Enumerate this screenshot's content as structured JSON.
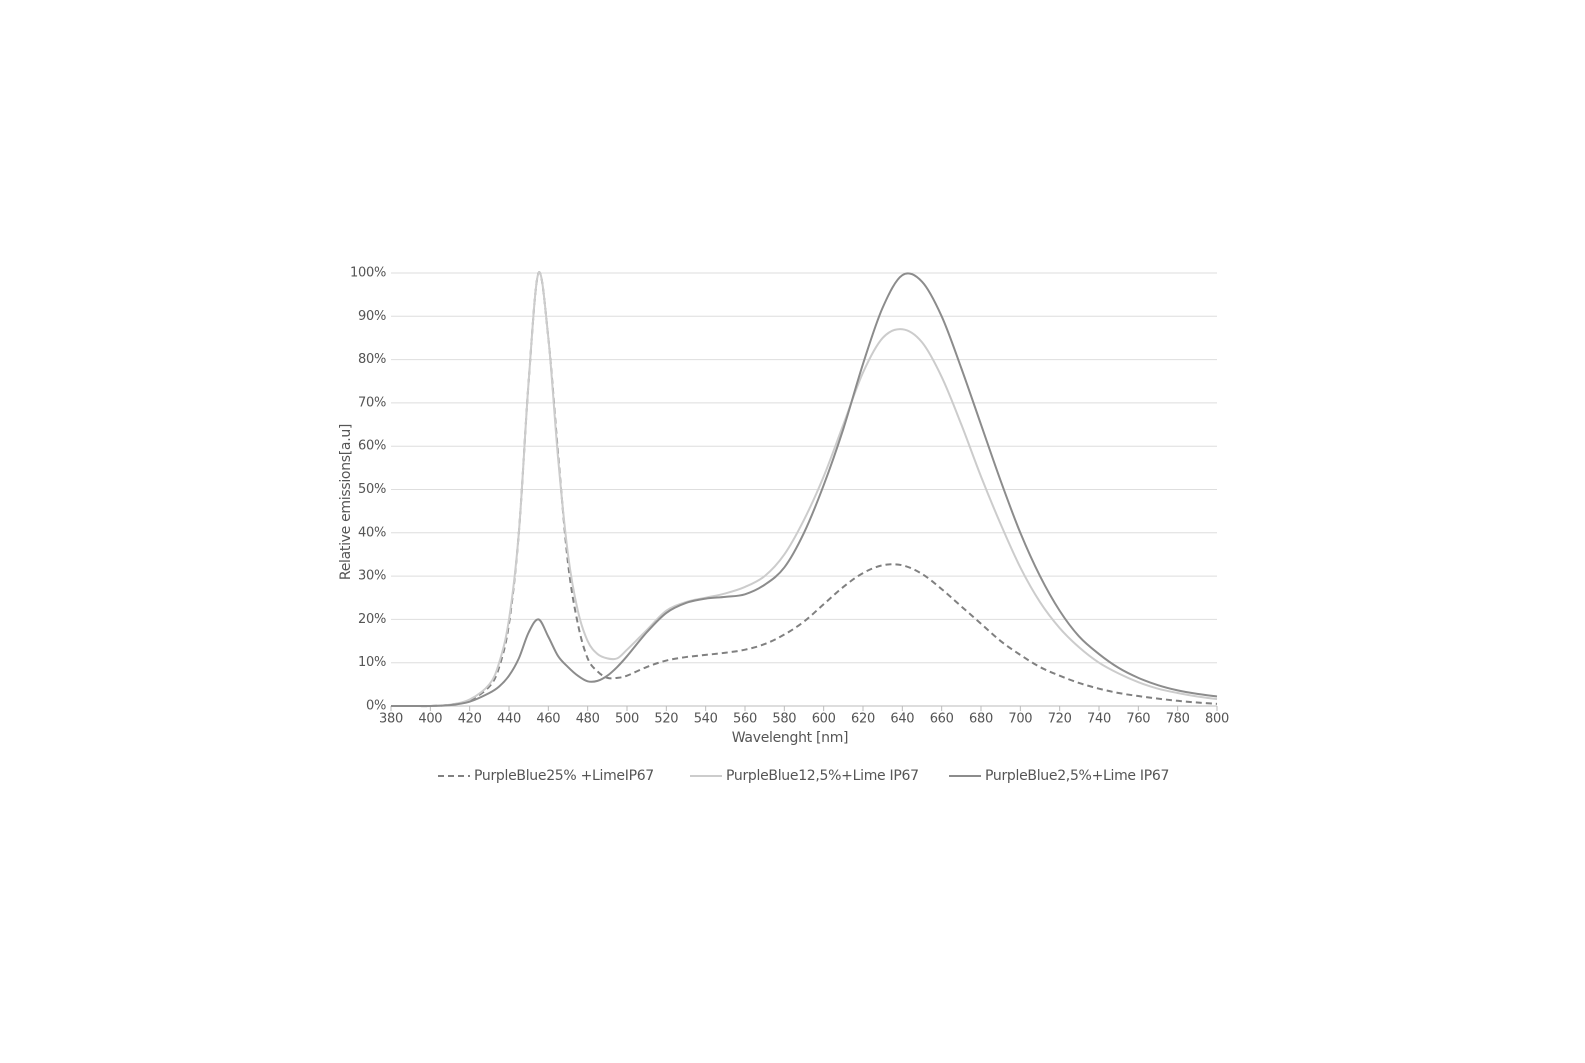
{
  "chart_data": {
    "type": "line",
    "x_label": "Wavelenght [nm]",
    "y_label": "Relative emissions[a.u]",
    "x": [
      380,
      390,
      400,
      410,
      420,
      430,
      435,
      440,
      445,
      450,
      455,
      460,
      465,
      470,
      475,
      480,
      485,
      490,
      495,
      500,
      510,
      520,
      530,
      540,
      550,
      560,
      570,
      580,
      590,
      600,
      610,
      620,
      630,
      640,
      650,
      660,
      670,
      680,
      690,
      700,
      710,
      720,
      730,
      740,
      750,
      760,
      770,
      780,
      790,
      800
    ],
    "series": [
      {
        "name": "PurpleBlue25% +LimeIP67",
        "color": "#808080",
        "style": "dashed",
        "values": [
          0,
          0,
          0,
          0.3,
          1.3,
          4.5,
          9,
          19,
          40,
          75,
          100,
          85,
          58,
          33,
          19,
          11,
          8,
          6.5,
          6.5,
          7,
          9,
          10.5,
          11.3,
          11.8,
          12.3,
          13,
          14.3,
          16.5,
          19.5,
          23.5,
          27.5,
          30.7,
          32.5,
          32.5,
          30.5,
          27,
          23,
          19,
          15,
          11.8,
          9,
          7,
          5.3,
          4,
          3,
          2.3,
          1.7,
          1.2,
          0.8,
          0.5
        ]
      },
      {
        "name": "PurpleBlue12,5%+Lime IP67",
        "color": "#cccccc",
        "style": "solid",
        "values": [
          0,
          0,
          0,
          0.3,
          1.5,
          5,
          10,
          20,
          40,
          75,
          100,
          85,
          57,
          35,
          22,
          15,
          12,
          11,
          11,
          13,
          17.5,
          22,
          24,
          25,
          26,
          27.5,
          30,
          35,
          43,
          53,
          65,
          77,
          85,
          87,
          84,
          76,
          65,
          53,
          42,
          32,
          24,
          18,
          13.5,
          10,
          7.5,
          5.5,
          4,
          3,
          2.2,
          1.6
        ]
      },
      {
        "name": "PurpleBlue2,5%+Lime IP67",
        "color": "#8c8c8c",
        "style": "solid",
        "values": [
          0,
          0,
          0,
          0.2,
          1,
          3,
          4.5,
          7,
          11,
          17,
          20,
          16,
          11.5,
          9,
          7,
          5.7,
          5.8,
          7,
          9,
          11.5,
          17,
          21.5,
          23.8,
          24.8,
          25.2,
          25.8,
          28,
          32,
          40,
          51,
          64,
          79,
          92,
          99.5,
          98,
          90,
          78,
          65,
          52,
          40,
          30,
          22,
          16,
          12,
          8.8,
          6.5,
          4.8,
          3.6,
          2.8,
          2.2
        ]
      }
    ],
    "xlim": [
      380,
      800
    ],
    "xticks": [
      380,
      400,
      420,
      440,
      460,
      480,
      500,
      520,
      540,
      560,
      580,
      600,
      620,
      640,
      660,
      680,
      700,
      720,
      740,
      760,
      780,
      800
    ],
    "ylim": [
      0,
      100
    ],
    "yticks": [
      {
        "value": 0,
        "label": "0%"
      },
      {
        "value": 10,
        "label": "10%"
      },
      {
        "value": 20,
        "label": "20%"
      },
      {
        "value": 30,
        "label": "30%"
      },
      {
        "value": 40,
        "label": "40%"
      },
      {
        "value": 50,
        "label": "50%"
      },
      {
        "value": 60,
        "label": "60%"
      },
      {
        "value": 70,
        "label": "70%"
      },
      {
        "value": 80,
        "label": "80%"
      },
      {
        "value": 90,
        "label": "90%"
      },
      {
        "value": 100,
        "label": "100%"
      }
    ],
    "grid": true,
    "legend": "bottom"
  }
}
